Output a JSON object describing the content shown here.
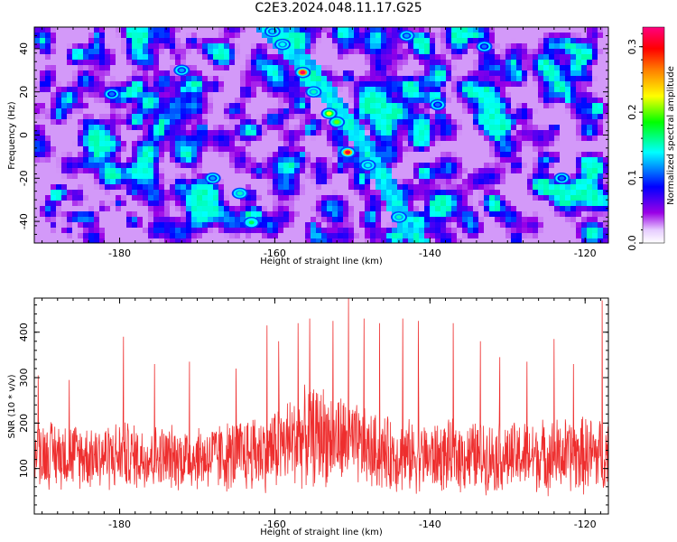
{
  "title": "C2E3.2024.048.11.17.G25",
  "chart_data": [
    {
      "type": "heatmap",
      "xlabel": "Height of straight line (km)",
      "ylabel": "Frequency (Hz)",
      "xlim": [
        -191,
        -117
      ],
      "ylim": [
        -50,
        50
      ],
      "xticks": [
        -180,
        -160,
        -140,
        -120
      ],
      "yticks": [
        -40,
        -20,
        0,
        20,
        40
      ],
      "colorbar": {
        "label": "Normalized spectral amplitude",
        "range": [
          0.0,
          0.33
        ],
        "ticks": [
          0.0,
          0.1,
          0.2,
          0.3
        ],
        "colors": [
          "#ffffff",
          "#9a00e6",
          "#0000ff",
          "#00ffff",
          "#00ff00",
          "#ffff00",
          "#ff8000",
          "#ff0000",
          "#ff0080"
        ]
      },
      "ridge": {
        "description_points": [
          {
            "x": -161.0,
            "y": 50
          },
          {
            "x": -155.0,
            "y": 28
          },
          {
            "x": -151.0,
            "y": 8
          },
          {
            "x": -148.0,
            "y": -8
          },
          {
            "x": -146.0,
            "y": -20
          },
          {
            "x": -143.0,
            "y": -42
          },
          {
            "x": -141.5,
            "y": -50
          }
        ]
      },
      "hotspots": [
        {
          "x": -156.4,
          "y": 29.0,
          "amp": 0.32
        },
        {
          "x": -150.6,
          "y": -8.0,
          "amp": 0.31
        },
        {
          "x": -153.0,
          "y": 10.0,
          "amp": 0.22
        },
        {
          "x": -152.0,
          "y": 6.0,
          "amp": 0.2
        },
        {
          "x": -155.0,
          "y": 20.0,
          "amp": 0.15
        },
        {
          "x": -159.0,
          "y": 42.0,
          "amp": 0.14
        },
        {
          "x": -160.3,
          "y": 48.0,
          "amp": 0.13
        },
        {
          "x": -163.0,
          "y": -40.5,
          "amp": 0.17
        },
        {
          "x": -164.5,
          "y": -27.0,
          "amp": 0.15
        },
        {
          "x": -144.0,
          "y": -38.0,
          "amp": 0.15
        },
        {
          "x": -148.0,
          "y": -14.0,
          "amp": 0.14
        },
        {
          "x": -143.0,
          "y": 46.0,
          "amp": 0.12
        },
        {
          "x": -172.0,
          "y": 30.0,
          "amp": 0.12
        },
        {
          "x": -181.0,
          "y": 19.0,
          "amp": 0.11
        },
        {
          "x": -123.0,
          "y": -20.0,
          "amp": 0.11
        },
        {
          "x": -139.0,
          "y": 14.0,
          "amp": 0.11
        },
        {
          "x": -168.0,
          "y": -20.0,
          "amp": 0.12
        },
        {
          "x": -133.0,
          "y": 41.0,
          "amp": 0.11
        }
      ]
    },
    {
      "type": "line",
      "xlabel": "Height of straight line (km)",
      "ylabel": "SNR (10 * v/v)",
      "xlim": [
        -191,
        -117
      ],
      "ylim": [
        0,
        475
      ],
      "xticks": [
        -180,
        -160,
        -140,
        -120
      ],
      "yticks": [
        100,
        200,
        300,
        400
      ],
      "color": "#ee2e2e",
      "envelope": {
        "x": [
          -191,
          -185,
          -180,
          -175,
          -170,
          -165,
          -160,
          -157,
          -154,
          -151,
          -148,
          -145,
          -140,
          -135,
          -130,
          -125,
          -120,
          -117
        ],
        "baseline": [
          135,
          130,
          128,
          125,
          125,
          128,
          145,
          165,
          175,
          160,
          140,
          130,
          125,
          128,
          125,
          128,
          130,
          132
        ],
        "spread": [
          85,
          80,
          85,
          78,
          80,
          90,
          105,
          115,
          125,
          110,
          95,
          90,
          85,
          88,
          85,
          90,
          95,
          100
        ]
      },
      "peaks": [
        {
          "x": -190.5,
          "y": 305
        },
        {
          "x": -186.5,
          "y": 295
        },
        {
          "x": -179.5,
          "y": 390
        },
        {
          "x": -175.5,
          "y": 330
        },
        {
          "x": -171.0,
          "y": 335
        },
        {
          "x": -165.0,
          "y": 320
        },
        {
          "x": -161.0,
          "y": 415
        },
        {
          "x": -159.5,
          "y": 380
        },
        {
          "x": -157.0,
          "y": 420
        },
        {
          "x": -155.5,
          "y": 430
        },
        {
          "x": -152.5,
          "y": 425
        },
        {
          "x": -150.5,
          "y": 475
        },
        {
          "x": -148.5,
          "y": 430
        },
        {
          "x": -146.5,
          "y": 420
        },
        {
          "x": -143.5,
          "y": 430
        },
        {
          "x": -141.5,
          "y": 425
        },
        {
          "x": -137.0,
          "y": 420
        },
        {
          "x": -133.5,
          "y": 380
        },
        {
          "x": -131.0,
          "y": 345
        },
        {
          "x": -127.5,
          "y": 335
        },
        {
          "x": -124.0,
          "y": 385
        },
        {
          "x": -121.5,
          "y": 330
        },
        {
          "x": -117.8,
          "y": 470
        }
      ]
    }
  ]
}
